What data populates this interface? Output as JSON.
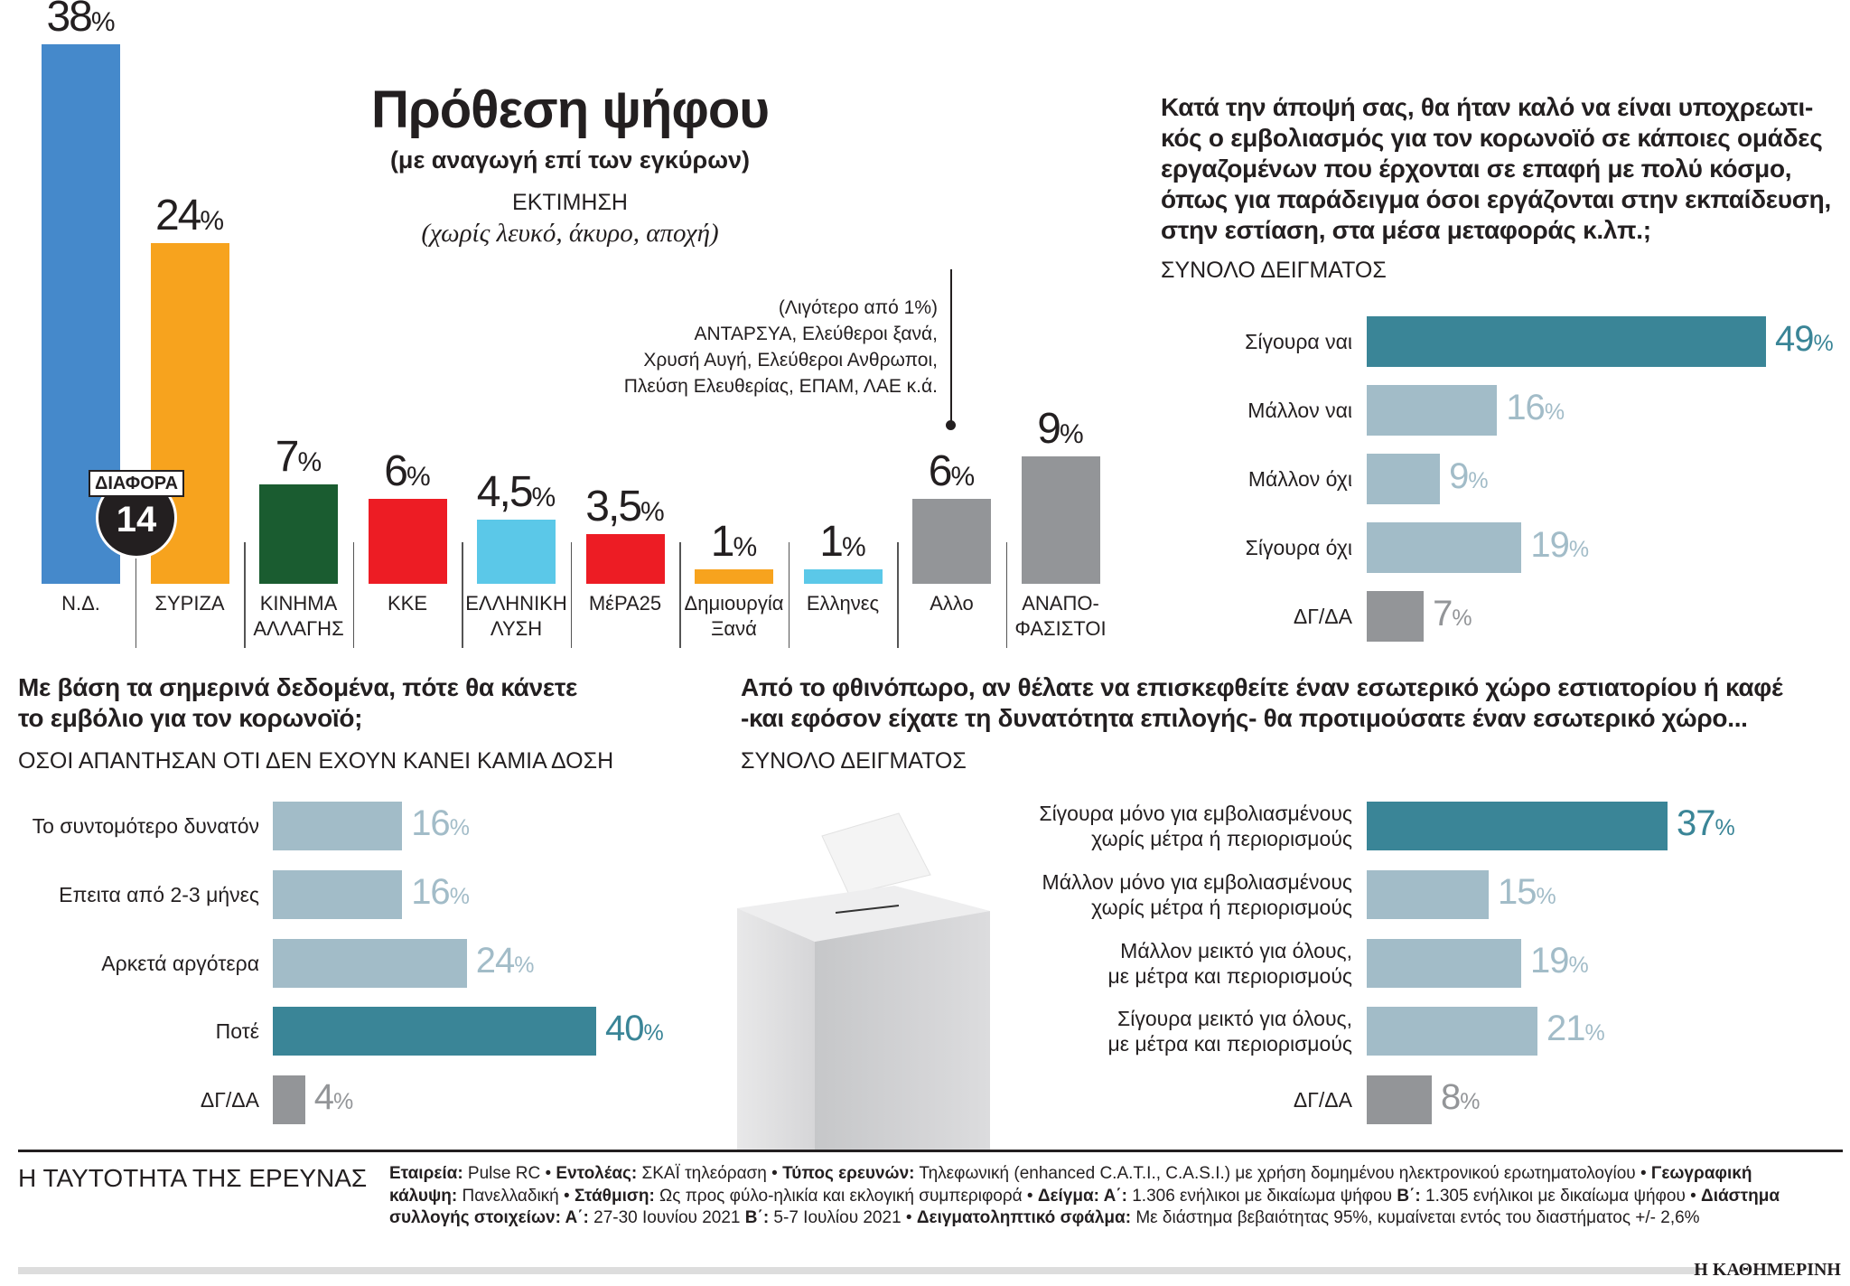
{
  "colors": {
    "teal": "#3a8597",
    "light": "#a2bcc8",
    "grey": "#939598",
    "text": "#231f20"
  },
  "main": {
    "title": "Πρόθεση ψήφου",
    "subtitle": "(με αναγωγή επί των εγκύρων)",
    "estimate_label": "ΕΚΤΙΜΗΣΗ",
    "estimate_note": "(χωρίς λευκό, άκυρο, αποχή)",
    "annotation": [
      "(Λιγότερο από 1%)",
      "ΑΝΤΑΡΣΥΑ, Ελεύθεροι ξανά,",
      "Χρυσή Αυγή, Ελεύθεροι Ανθρωποι,",
      "Πλεύση Ελευθερίας, ΕΠΑΜ, ΛΑΕ κ.ά."
    ],
    "difference": {
      "label": "ΔΙΑΦΟΡΑ",
      "value": "14"
    }
  },
  "chart_data": [
    {
      "type": "bar",
      "title": "Πρόθεση ψήφου",
      "categories": [
        [
          "Ν.Δ."
        ],
        [
          "ΣΥΡΙΖΑ"
        ],
        [
          "ΚΙΝΗΜΑ",
          "ΑΛΛΑΓΗΣ"
        ],
        [
          "ΚΚΕ"
        ],
        [
          "ΕΛΛΗΝΙΚΗ",
          "ΛΥΣΗ"
        ],
        [
          "ΜέΡΑ25"
        ],
        [
          "Δημιουργία",
          "Ξανά"
        ],
        [
          "Ελληνες"
        ],
        [
          "Αλλο"
        ],
        [
          "ΑΝΑΠΟ-",
          "ΦΑΣΙΣΤΟΙ"
        ]
      ],
      "values": [
        38,
        24,
        7,
        6,
        4.5,
        3.5,
        1,
        1,
        6,
        9
      ],
      "value_labels": [
        "38",
        "24",
        "7",
        "6",
        "4,5",
        "3,5",
        "1",
        "1",
        "6",
        "9"
      ],
      "unit": "%",
      "colors": [
        "#4589cb",
        "#f7a31e",
        "#1a5c30",
        "#ed1c24",
        "#5bc8e8",
        "#ed1c24",
        "#f7a31e",
        "#5bc8e8",
        "#939598",
        "#939598"
      ]
    },
    {
      "type": "bar",
      "orientation": "horizontal",
      "title": "Κατά την άποψή σας, θα ήταν καλό να είναι υποχρεωτι-κός ο εμβολιασμός για τον κορωνοϊό σε κάποιες ομάδες εργαζομένων που έρχονται σε επαφή με πολύ κόσμο, όπως για παράδειγμα όσοι εργάζονται στην εκπαίδευση, στην εστίαση, στα μέσα μεταφοράς κ.λπ.;",
      "title_lines": [
        "Κατά την άποψή σας, θα ήταν καλό να είναι υποχρεωτι-",
        "κός ο εμβολιασμός για τον κορωνοϊό σε κάποιες ομάδες",
        "εργαζομένων που έρχονται σε επαφή με πολύ κόσμο,",
        "όπως για παράδειγμα όσοι εργάζονται στην εκπαίδευση,",
        "στην εστίαση, στα μέσα μεταφοράς κ.λπ.;"
      ],
      "subtitle": "ΣΥΝΟΛΟ ΔΕΙΓΜΑΤΟΣ",
      "categories": [
        [
          "Σίγουρα ναι"
        ],
        [
          "Μάλλον ναι"
        ],
        [
          "Μάλλον όχι"
        ],
        [
          "Σίγουρα όχι"
        ],
        [
          "ΔΓ/ΔΑ"
        ]
      ],
      "values": [
        49,
        16,
        9,
        19,
        7
      ],
      "value_labels": [
        "49",
        "16",
        "9",
        "19",
        "7"
      ],
      "unit": "%",
      "color_keys": [
        "teal",
        "light",
        "light",
        "light",
        "grey"
      ]
    },
    {
      "type": "bar",
      "orientation": "horizontal",
      "title_lines": [
        "Με βάση τα σημερινά δεδομένα, πότε θα κάνετε",
        "το εμβόλιο για τον κορωνοϊό;"
      ],
      "subtitle": "ΟΣΟΙ ΑΠΑΝΤΗΣΑΝ ΟΤΙ ΔΕΝ ΕΧΟΥΝ ΚΑΝΕΙ ΚΑΜΙΑ ΔΟΣΗ",
      "categories": [
        [
          "Το συντομότερο δυνατόν"
        ],
        [
          "Επειτα από 2-3 μήνες"
        ],
        [
          "Αρκετά αργότερα"
        ],
        [
          "Ποτέ"
        ],
        [
          "ΔΓ/ΔΑ"
        ]
      ],
      "values": [
        16,
        16,
        24,
        40,
        4
      ],
      "value_labels": [
        "16",
        "16",
        "24",
        "40",
        "4"
      ],
      "unit": "%",
      "color_keys": [
        "light",
        "light",
        "light",
        "teal",
        "grey"
      ]
    },
    {
      "type": "bar",
      "orientation": "horizontal",
      "title_lines": [
        "Από το φθινόπωρο, αν θέλατε να επισκεφθείτε έναν εσωτερικό χώρο εστιατορίου ή καφέ",
        "-και εφόσον είχατε τη δυνατότητα επιλογής- θα προτιμούσατε έναν εσωτερικό χώρο..."
      ],
      "subtitle": "ΣΥΝΟΛΟ ΔΕΙΓΜΑΤΟΣ",
      "categories": [
        [
          "Σίγουρα μόνο για εμβολιασμένους",
          "χωρίς μέτρα ή περιορισμούς"
        ],
        [
          "Μάλλον μόνο για εμβολιασμένους",
          "χωρίς μέτρα ή περιορισμούς"
        ],
        [
          "Μάλλον μεικτό για όλους,",
          "με μέτρα και περιορισμούς"
        ],
        [
          "Σίγουρα μεικτό για όλους,",
          "με μέτρα και περιορισμούς"
        ],
        [
          "ΔΓ/ΔΑ"
        ]
      ],
      "values": [
        37,
        15,
        19,
        21,
        8
      ],
      "value_labels": [
        "37",
        "15",
        "19",
        "21",
        "8"
      ],
      "unit": "%",
      "color_keys": [
        "teal",
        "light",
        "light",
        "light",
        "grey"
      ]
    }
  ],
  "footer": {
    "heading": "Η ΤΑΥΤΟΤΗΤΑ ΤΗΣ ΕΡΕΥΝΑΣ",
    "items": [
      {
        "k": "Εταιρεία:",
        "v": " Pulse RC • "
      },
      {
        "k": "Εντολέας:",
        "v": " ΣΚΑΪ τηλεόραση • "
      },
      {
        "k": "Τύπος ερευνών:",
        "v": " Τηλεφωνική (enhanced C.A.T.I., C.A.S.I.) με χρήση δομημένου ηλεκτρονικού ερωτηματολογίου • "
      },
      {
        "k": "Γεωγραφική κάλυψη:",
        "v": " Πανελλαδική • "
      },
      {
        "k": "Στάθμιση:",
        "v": " Ως προς φύλο-ηλικία και εκλογική συμπεριφορά • "
      },
      {
        "k": "Δείγμα: Α΄:",
        "v": " 1.306 ενήλικοι με δικαίωμα ψήφου "
      },
      {
        "k": "Β΄:",
        "v": " 1.305 ενήλικοι με δικαίωμα ψήφου • "
      },
      {
        "k": "Διάστημα συλλογής στοιχείων: Α΄:",
        "v": " 27-30 Ιουνίου 2021 "
      },
      {
        "k": "Β΄:",
        "v": " 5-7 Ιουλίου 2021 • "
      },
      {
        "k": "Δειγματοληπτικό σφάλμα:",
        "v": " Με διάστημα βεβαιότητας 95%, κυμαίνεται εντός του διαστήματος +/- 2,6%"
      }
    ],
    "brand": "Η ΚΑΘΗΜΕΡΙΝΗ"
  }
}
